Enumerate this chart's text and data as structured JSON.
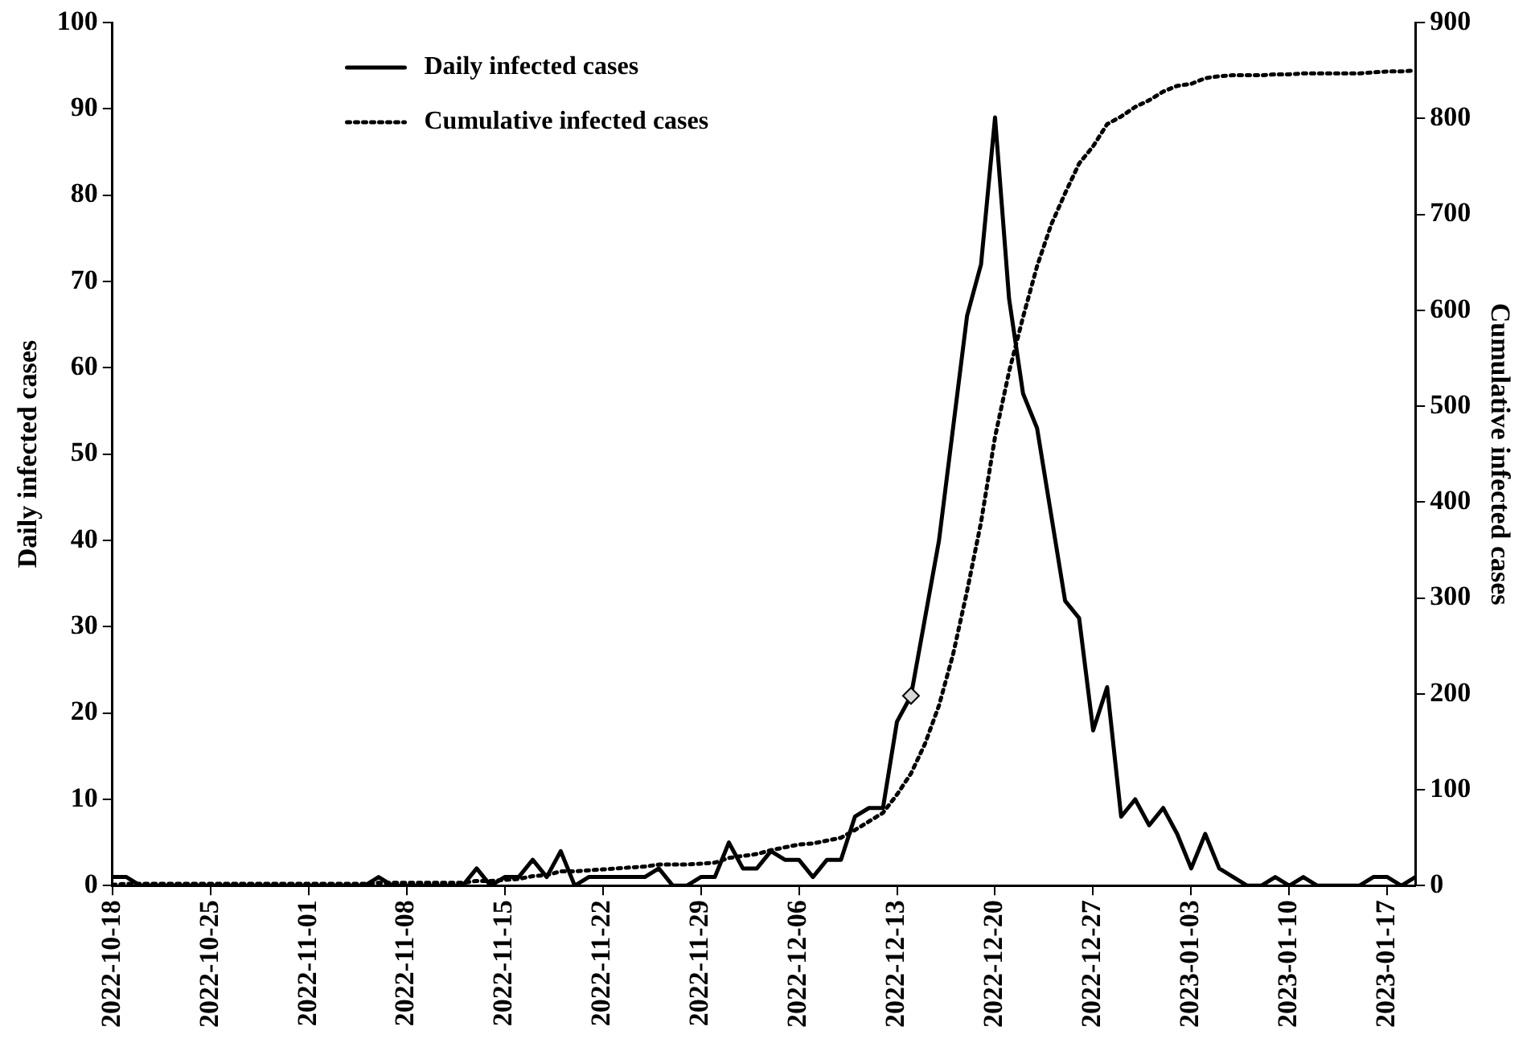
{
  "chart_data": {
    "type": "line",
    "ylabel": "Daily infected cases",
    "y2label": "Cumulative infected cases",
    "x": [
      "2022-10-18",
      "2022-10-19",
      "2022-10-20",
      "2022-10-21",
      "2022-10-22",
      "2022-10-23",
      "2022-10-24",
      "2022-10-25",
      "2022-10-26",
      "2022-10-27",
      "2022-10-28",
      "2022-10-29",
      "2022-10-30",
      "2022-10-31",
      "2022-11-01",
      "2022-11-02",
      "2022-11-03",
      "2022-11-04",
      "2022-11-05",
      "2022-11-06",
      "2022-11-07",
      "2022-11-08",
      "2022-11-09",
      "2022-11-10",
      "2022-11-11",
      "2022-11-12",
      "2022-11-13",
      "2022-11-14",
      "2022-11-15",
      "2022-11-16",
      "2022-11-17",
      "2022-11-18",
      "2022-11-19",
      "2022-11-20",
      "2022-11-21",
      "2022-11-22",
      "2022-11-23",
      "2022-11-24",
      "2022-11-25",
      "2022-11-26",
      "2022-11-27",
      "2022-11-28",
      "2022-11-29",
      "2022-11-30",
      "2022-12-01",
      "2022-12-02",
      "2022-12-03",
      "2022-12-04",
      "2022-12-05",
      "2022-12-06",
      "2022-12-07",
      "2022-12-08",
      "2022-12-09",
      "2022-12-10",
      "2022-12-11",
      "2022-12-12",
      "2022-12-13",
      "2022-12-14",
      "2022-12-15",
      "2022-12-16",
      "2022-12-17",
      "2022-12-18",
      "2022-12-19",
      "2022-12-20",
      "2022-12-21",
      "2022-12-22",
      "2022-12-23",
      "2022-12-24",
      "2022-12-25",
      "2022-12-26",
      "2022-12-27",
      "2022-12-28",
      "2022-12-29",
      "2022-12-30",
      "2022-12-31",
      "2023-01-01",
      "2023-01-02",
      "2023-01-03",
      "2023-01-04",
      "2023-01-05",
      "2023-01-06",
      "2023-01-07",
      "2023-01-08",
      "2023-01-09",
      "2023-01-10",
      "2023-01-11",
      "2023-01-12",
      "2023-01-13",
      "2023-01-14",
      "2023-01-15",
      "2023-01-16",
      "2023-01-17",
      "2023-01-18",
      "2023-01-19"
    ],
    "series": [
      {
        "name": "Daily infected cases",
        "color": "#000000",
        "line_style": "solid",
        "values": [
          1,
          1,
          0,
          0,
          0,
          0,
          0,
          0,
          0,
          0,
          0,
          0,
          0,
          0,
          0,
          0,
          0,
          0,
          0,
          1,
          0,
          0,
          0,
          0,
          0,
          0,
          2,
          0,
          1,
          1,
          3,
          1,
          4,
          0,
          1,
          1,
          1,
          1,
          1,
          2,
          0,
          0,
          1,
          1,
          5,
          2,
          2,
          4,
          3,
          3,
          1,
          3,
          3,
          8,
          9,
          9,
          19,
          22,
          31,
          40,
          53,
          66,
          72,
          89,
          68,
          57,
          53,
          43,
          33,
          31,
          18,
          23,
          8,
          10,
          7,
          9,
          6,
          2,
          6,
          2,
          1,
          0,
          0,
          1,
          0,
          1,
          0,
          0,
          0,
          0,
          1,
          1,
          0,
          1
        ]
      },
      {
        "name": "Cumulative infected cases",
        "color": "#000000",
        "line_style": "dotted",
        "axis": "y2",
        "values": [
          1,
          2,
          2,
          2,
          2,
          2,
          2,
          2,
          2,
          2,
          2,
          2,
          2,
          2,
          2,
          2,
          2,
          2,
          2,
          3,
          3,
          3,
          3,
          3,
          3,
          3,
          5,
          5,
          6,
          7,
          10,
          11,
          15,
          15,
          16,
          17,
          18,
          19,
          20,
          22,
          22,
          22,
          23,
          24,
          29,
          31,
          33,
          37,
          40,
          43,
          44,
          47,
          50,
          58,
          67,
          76,
          95,
          117,
          148,
          188,
          241,
          307,
          379,
          468,
          536,
          593,
          646,
          689,
          722,
          753,
          771,
          794,
          802,
          812,
          819,
          828,
          834,
          836,
          842,
          844,
          845,
          845,
          845,
          846,
          846,
          847,
          847,
          847,
          847,
          847,
          848,
          849,
          849,
          850
        ]
      },
      {
        "type": "scatter",
        "marker": "diamond",
        "color": "#d9d9d9",
        "x": [
          "2022-12-14"
        ],
        "values": [
          22
        ]
      }
    ],
    "xlim": [
      "2022-10-18",
      "2023-01-19"
    ],
    "xticks": [
      "2022-10-18",
      "2022-10-25",
      "2022-11-01",
      "2022-11-08",
      "2022-11-15",
      "2022-11-22",
      "2022-11-29",
      "2022-12-06",
      "2022-12-13",
      "2022-12-20",
      "2022-12-27",
      "2023-01-03",
      "2023-01-10",
      "2023-01-17"
    ],
    "ylim": [
      0,
      100
    ],
    "yticks": [
      0,
      10,
      20,
      30,
      40,
      50,
      60,
      70,
      80,
      90,
      100
    ],
    "y2lim": [
      0,
      900
    ],
    "y2ticks": [
      0,
      100,
      200,
      300,
      400,
      500,
      600,
      700,
      800,
      900
    ],
    "marker": "none",
    "grid": false,
    "legend": "top left"
  }
}
